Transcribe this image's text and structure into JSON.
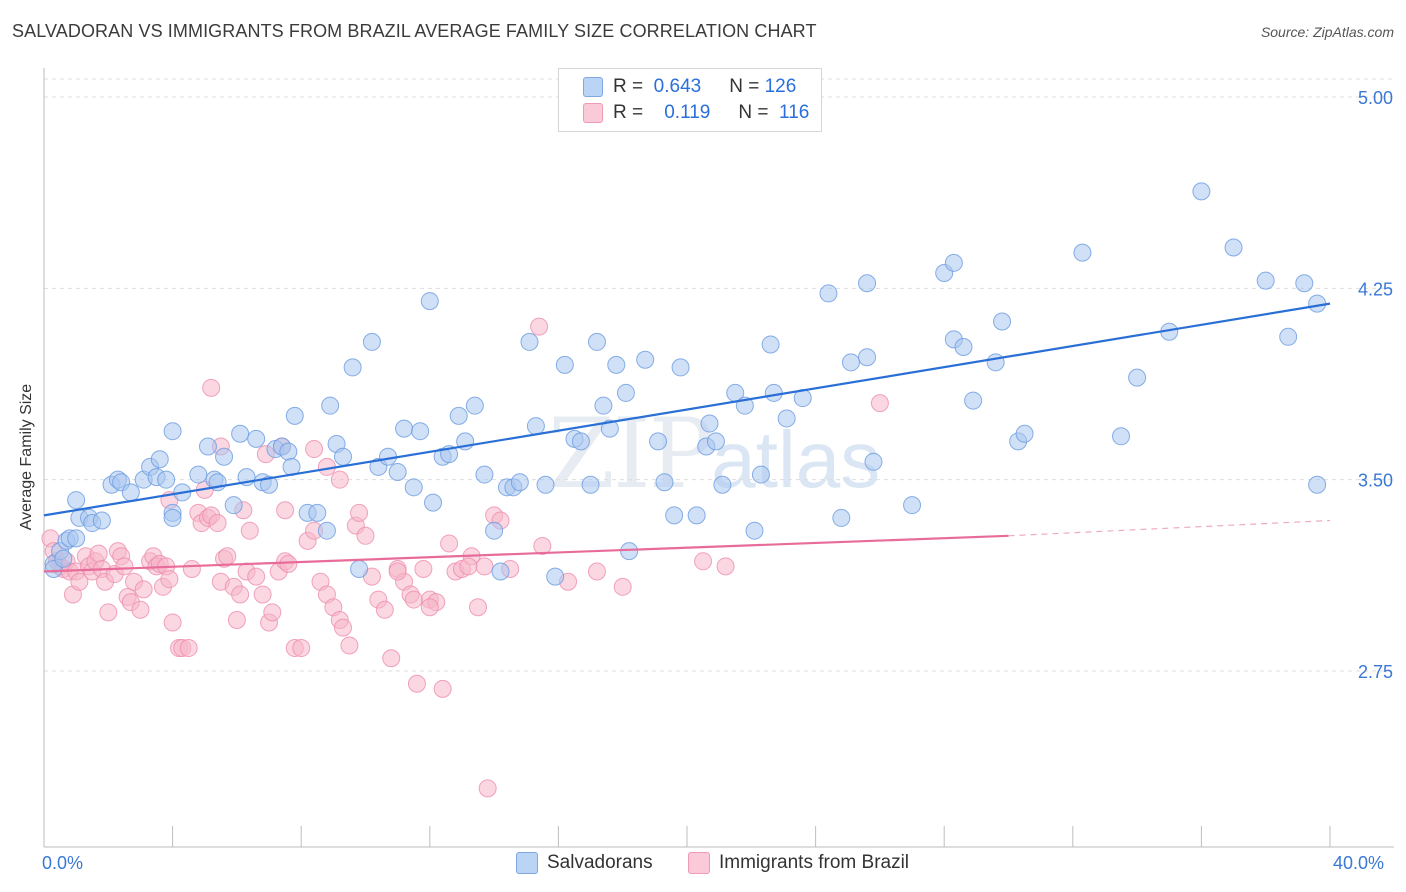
{
  "header": {
    "title": "SALVADORAN VS IMMIGRANTS FROM BRAZIL AVERAGE FAMILY SIZE CORRELATION CHART",
    "source": "Source: ZipAtlas.com"
  },
  "watermark": {
    "zip": "ZIP",
    "atlas": "atlas"
  },
  "legend": {
    "r_label": "R =",
    "n_label": "N =",
    "rows": [
      {
        "r": "0.643",
        "n": "126",
        "color": "#a9c7f0"
      },
      {
        "r": "0.119",
        "n": "116",
        "color": "#f6b6c9"
      }
    ]
  },
  "bottom_legend": {
    "salvadorans": "Salvadorans",
    "brazil": "Immigrants from Brazil"
  },
  "axes": {
    "y_title": "Average Family Size",
    "x_min_label": "0.0%",
    "x_max_label": "40.0%",
    "y_ticks": [
      "5.00",
      "4.25",
      "3.50",
      "2.75"
    ]
  },
  "chart_data": {
    "type": "scatter",
    "xlabel": "",
    "ylabel": "Average Family Size",
    "xlim": [
      0,
      40
    ],
    "ylim": [
      2.0,
      5.2
    ],
    "x_unit": "%",
    "y_ticks": [
      2.75,
      3.5,
      4.25,
      5.0
    ],
    "grid": true,
    "legend_position": "top-center",
    "series": [
      {
        "name": "Salvadorans",
        "color": "#6a9be0",
        "fill": "#a9c7f0",
        "trend": {
          "x": [
            0,
            40
          ],
          "y": [
            3.36,
            4.19
          ]
        },
        "points": [
          [
            0.3,
            3.17
          ],
          [
            0.3,
            3.15
          ],
          [
            0.5,
            3.22
          ],
          [
            0.7,
            3.26
          ],
          [
            0.6,
            3.19
          ],
          [
            0.8,
            3.27
          ],
          [
            1.0,
            3.27
          ],
          [
            1.0,
            3.42
          ],
          [
            1.1,
            3.35
          ],
          [
            1.4,
            3.35
          ],
          [
            1.5,
            3.33
          ],
          [
            1.8,
            3.34
          ],
          [
            2.1,
            3.48
          ],
          [
            2.3,
            3.5
          ],
          [
            2.4,
            3.49
          ],
          [
            2.7,
            3.45
          ],
          [
            3.1,
            3.5
          ],
          [
            3.3,
            3.55
          ],
          [
            3.6,
            3.58
          ],
          [
            3.5,
            3.51
          ],
          [
            3.8,
            3.5
          ],
          [
            4.0,
            3.37
          ],
          [
            4.0,
            3.35
          ],
          [
            4.3,
            3.45
          ],
          [
            4.0,
            3.69
          ],
          [
            4.8,
            3.52
          ],
          [
            5.1,
            3.63
          ],
          [
            5.3,
            3.5
          ],
          [
            5.4,
            3.49
          ],
          [
            5.6,
            3.59
          ],
          [
            5.9,
            3.4
          ],
          [
            6.1,
            3.68
          ],
          [
            6.3,
            3.51
          ],
          [
            6.6,
            3.66
          ],
          [
            6.8,
            3.49
          ],
          [
            7.0,
            3.48
          ],
          [
            7.2,
            3.62
          ],
          [
            7.4,
            3.63
          ],
          [
            7.6,
            3.61
          ],
          [
            7.7,
            3.55
          ],
          [
            7.8,
            3.75
          ],
          [
            8.2,
            3.37
          ],
          [
            8.5,
            3.37
          ],
          [
            8.8,
            3.3
          ],
          [
            8.9,
            3.79
          ],
          [
            9.1,
            3.64
          ],
          [
            9.3,
            3.59
          ],
          [
            9.6,
            3.94
          ],
          [
            9.8,
            3.15
          ],
          [
            10.2,
            4.04
          ],
          [
            10.4,
            3.55
          ],
          [
            10.7,
            3.59
          ],
          [
            11.0,
            3.53
          ],
          [
            11.2,
            3.7
          ],
          [
            11.5,
            3.47
          ],
          [
            11.7,
            3.69
          ],
          [
            12.0,
            4.2
          ],
          [
            12.1,
            3.41
          ],
          [
            12.4,
            3.59
          ],
          [
            12.6,
            3.6
          ],
          [
            12.9,
            3.75
          ],
          [
            13.1,
            3.65
          ],
          [
            13.4,
            3.79
          ],
          [
            13.7,
            3.52
          ],
          [
            14.0,
            3.3
          ],
          [
            14.2,
            3.14
          ],
          [
            14.4,
            3.47
          ],
          [
            14.6,
            3.47
          ],
          [
            14.8,
            3.49
          ],
          [
            15.1,
            4.04
          ],
          [
            15.3,
            3.71
          ],
          [
            15.6,
            3.48
          ],
          [
            15.9,
            3.12
          ],
          [
            16.2,
            3.95
          ],
          [
            16.5,
            3.66
          ],
          [
            16.7,
            3.65
          ],
          [
            17.0,
            3.48
          ],
          [
            17.2,
            4.04
          ],
          [
            17.4,
            3.79
          ],
          [
            17.6,
            3.7
          ],
          [
            17.8,
            3.95
          ],
          [
            18.1,
            3.84
          ],
          [
            18.2,
            3.22
          ],
          [
            18.7,
            3.97
          ],
          [
            19.1,
            3.65
          ],
          [
            19.3,
            3.49
          ],
          [
            19.6,
            3.36
          ],
          [
            19.8,
            3.94
          ],
          [
            20.3,
            3.36
          ],
          [
            20.6,
            3.63
          ],
          [
            20.7,
            3.72
          ],
          [
            20.9,
            3.65
          ],
          [
            21.1,
            3.48
          ],
          [
            21.5,
            3.84
          ],
          [
            21.8,
            3.79
          ],
          [
            22.1,
            3.3
          ],
          [
            22.3,
            3.52
          ],
          [
            22.6,
            4.03
          ],
          [
            22.7,
            3.84
          ],
          [
            23.1,
            3.74
          ],
          [
            23.6,
            3.82
          ],
          [
            24.4,
            4.23
          ],
          [
            24.8,
            3.35
          ],
          [
            25.1,
            3.96
          ],
          [
            25.6,
            4.27
          ],
          [
            25.8,
            3.57
          ],
          [
            25.6,
            3.98
          ],
          [
            27.0,
            3.4
          ],
          [
            28.0,
            4.31
          ],
          [
            28.3,
            4.35
          ],
          [
            28.3,
            4.05
          ],
          [
            28.6,
            4.02
          ],
          [
            28.9,
            3.81
          ],
          [
            29.6,
            3.96
          ],
          [
            29.8,
            4.12
          ],
          [
            30.3,
            3.65
          ],
          [
            30.5,
            3.68
          ],
          [
            32.3,
            4.39
          ],
          [
            33.5,
            3.67
          ],
          [
            34.0,
            3.9
          ],
          [
            35.0,
            4.08
          ],
          [
            37.0,
            4.41
          ],
          [
            38.7,
            4.06
          ],
          [
            39.2,
            4.27
          ],
          [
            36.0,
            4.63
          ],
          [
            38.0,
            4.28
          ],
          [
            39.6,
            4.19
          ],
          [
            39.6,
            3.48
          ]
        ]
      },
      {
        "name": "Immigrants from Brazil",
        "color": "#ee8db0",
        "fill": "#f6b6c9",
        "trend": {
          "x": [
            0,
            30
          ],
          "y": [
            3.14,
            3.28
          ]
        },
        "trend_dashed": {
          "x": [
            30,
            40
          ],
          "y": [
            3.28,
            3.34
          ]
        },
        "points": [
          [
            0.2,
            3.27
          ],
          [
            0.3,
            3.22
          ],
          [
            0.4,
            3.18
          ],
          [
            0.5,
            3.16
          ],
          [
            0.6,
            3.15
          ],
          [
            0.7,
            3.18
          ],
          [
            0.8,
            3.14
          ],
          [
            0.9,
            3.05
          ],
          [
            1.0,
            3.14
          ],
          [
            1.1,
            3.1
          ],
          [
            1.3,
            3.2
          ],
          [
            1.4,
            3.16
          ],
          [
            1.5,
            3.14
          ],
          [
            1.6,
            3.18
          ],
          [
            1.7,
            3.21
          ],
          [
            1.8,
            3.15
          ],
          [
            1.9,
            3.1
          ],
          [
            2.0,
            2.98
          ],
          [
            2.2,
            3.13
          ],
          [
            2.3,
            3.22
          ],
          [
            2.4,
            3.2
          ],
          [
            2.5,
            3.16
          ],
          [
            2.6,
            3.04
          ],
          [
            2.7,
            3.02
          ],
          [
            2.8,
            3.1
          ],
          [
            3.0,
            2.99
          ],
          [
            3.1,
            3.07
          ],
          [
            3.3,
            3.18
          ],
          [
            3.4,
            3.2
          ],
          [
            3.5,
            3.16
          ],
          [
            3.6,
            3.17
          ],
          [
            3.7,
            3.08
          ],
          [
            3.8,
            3.16
          ],
          [
            3.9,
            3.11
          ],
          [
            4.0,
            2.94
          ],
          [
            4.2,
            2.84
          ],
          [
            4.3,
            2.84
          ],
          [
            4.5,
            2.84
          ],
          [
            4.6,
            3.15
          ],
          [
            4.8,
            3.37
          ],
          [
            4.9,
            3.33
          ],
          [
            5.0,
            3.46
          ],
          [
            5.1,
            3.35
          ],
          [
            5.2,
            3.36
          ],
          [
            5.4,
            3.33
          ],
          [
            5.5,
            3.1
          ],
          [
            5.6,
            3.19
          ],
          [
            5.7,
            3.2
          ],
          [
            5.9,
            3.08
          ],
          [
            6.0,
            2.95
          ],
          [
            6.1,
            3.05
          ],
          [
            6.3,
            3.14
          ],
          [
            6.4,
            3.3
          ],
          [
            6.6,
            3.12
          ],
          [
            6.8,
            3.05
          ],
          [
            7.0,
            2.94
          ],
          [
            7.1,
            2.98
          ],
          [
            7.3,
            3.14
          ],
          [
            7.5,
            3.18
          ],
          [
            7.6,
            3.17
          ],
          [
            7.8,
            2.84
          ],
          [
            8.0,
            2.84
          ],
          [
            8.2,
            3.26
          ],
          [
            8.4,
            3.3
          ],
          [
            8.6,
            3.1
          ],
          [
            8.8,
            3.05
          ],
          [
            9.0,
            3.0
          ],
          [
            9.2,
            2.95
          ],
          [
            9.3,
            2.92
          ],
          [
            9.5,
            2.85
          ],
          [
            9.7,
            3.32
          ],
          [
            9.8,
            3.37
          ],
          [
            10.0,
            3.28
          ],
          [
            10.2,
            3.12
          ],
          [
            10.4,
            3.03
          ],
          [
            10.6,
            2.99
          ],
          [
            10.8,
            2.8
          ],
          [
            11.0,
            3.15
          ],
          [
            11.2,
            3.1
          ],
          [
            11.4,
            3.05
          ],
          [
            11.6,
            2.7
          ],
          [
            11.8,
            3.15
          ],
          [
            12.0,
            3.03
          ],
          [
            12.2,
            3.02
          ],
          [
            12.4,
            2.68
          ],
          [
            12.6,
            3.25
          ],
          [
            12.8,
            3.14
          ],
          [
            13.0,
            3.15
          ],
          [
            13.3,
            3.2
          ],
          [
            13.5,
            3.0
          ],
          [
            13.7,
            3.16
          ],
          [
            14.0,
            3.36
          ],
          [
            14.2,
            3.34
          ],
          [
            14.5,
            3.15
          ],
          [
            5.2,
            3.86
          ],
          [
            5.5,
            3.63
          ],
          [
            6.9,
            3.6
          ],
          [
            7.4,
            3.63
          ],
          [
            8.8,
            3.55
          ],
          [
            9.2,
            3.5
          ],
          [
            7.5,
            3.38
          ],
          [
            6.2,
            3.38
          ],
          [
            8.4,
            3.62
          ],
          [
            11.0,
            3.14
          ],
          [
            11.5,
            3.03
          ],
          [
            12.0,
            3.0
          ],
          [
            13.8,
            2.29
          ],
          [
            15.5,
            3.24
          ],
          [
            16.3,
            3.1
          ],
          [
            17.2,
            3.14
          ],
          [
            18.0,
            3.08
          ],
          [
            20.5,
            3.18
          ],
          [
            21.2,
            3.16
          ],
          [
            15.4,
            4.1
          ],
          [
            26.0,
            3.8
          ],
          [
            13.2,
            3.16
          ],
          [
            3.9,
            3.42
          ]
        ]
      }
    ]
  }
}
